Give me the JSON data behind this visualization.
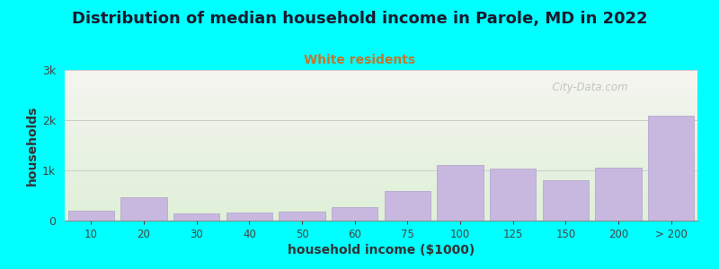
{
  "title": "Distribution of median household income in Parole, MD in 2022",
  "subtitle": "White residents",
  "xlabel": "household income ($1000)",
  "ylabel": "households",
  "background_color": "#00FFFF",
  "plot_bg_top": "#f5f5f0",
  "plot_bg_bottom": "#dff0d8",
  "bar_color": "#c8b8e0",
  "bar_edge_color": "#b0a0cc",
  "categories": [
    "10",
    "20",
    "30",
    "40",
    "50",
    "60",
    "75",
    "100",
    "125",
    "150",
    "200",
    "> 200"
  ],
  "values": [
    200,
    470,
    150,
    165,
    175,
    270,
    590,
    1100,
    1040,
    800,
    1050,
    2090
  ],
  "ylim": [
    0,
    3000
  ],
  "yticks": [
    0,
    1000,
    2000,
    3000
  ],
  "ytick_labels": [
    "0",
    "1k",
    "2k",
    "3k"
  ],
  "title_fontsize": 13,
  "subtitle_fontsize": 10,
  "subtitle_color": "#c07830",
  "axis_label_fontsize": 10,
  "watermark": "  City-Data.com"
}
